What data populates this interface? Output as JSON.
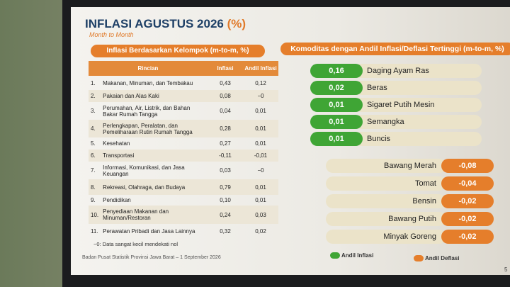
{
  "header": {
    "title": "INFLASI AGUSTUS 2026",
    "unit": "(%)",
    "subtitle": "Month to Month"
  },
  "table": {
    "title": "Inflasi Berdasarkan Kelompok (m-to-m, %)",
    "columns": [
      "Rincian",
      "Inflasi",
      "Andil Inflasi"
    ],
    "rows": [
      [
        "1.",
        "Makanan, Minuman, dan Tembakau",
        "0,43",
        "0,12"
      ],
      [
        "2.",
        "Pakaian dan Alas Kaki",
        "0,08",
        "−0"
      ],
      [
        "3.",
        "Perumahan, Air, Listrik, dan Bahan Bakar Rumah Tangga",
        "0,04",
        "0,01"
      ],
      [
        "4.",
        "Perlengkapan, Peralatan, dan Pemeliharaan Rutin Rumah Tangga",
        "0,28",
        "0,01"
      ],
      [
        "5.",
        "Kesehatan",
        "0,27",
        "0,01"
      ],
      [
        "6.",
        "Transportasi",
        "-0,11",
        "-0,01"
      ],
      [
        "7.",
        "Informasi, Komunikasi, dan Jasa Keuangan",
        "0,03",
        "−0"
      ],
      [
        "8.",
        "Rekreasi, Olahraga, dan Budaya",
        "0,79",
        "0,01"
      ],
      [
        "9.",
        "Pendidikan",
        "0,10",
        "0,01"
      ],
      [
        "10.",
        "Penyediaan Makanan dan Minuman/Restoran",
        "0,24",
        "0,03"
      ],
      [
        "11.",
        "Perawatan Pribadi dan Jasa Lainnya",
        "0,32",
        "0,02"
      ]
    ],
    "footnote": "−0: Data sangat kecil mendekati nol"
  },
  "source": "Badan Pusat Statistik Provinsi Jawa Barat – 1 September 2026",
  "commodities": {
    "title": "Komoditas dengan Andil Inflasi/Deflasi Tertinggi (m-to-m, %)",
    "inflation": [
      [
        "0,16",
        "Daging Ayam Ras"
      ],
      [
        "0,02",
        "Beras"
      ],
      [
        "0,01",
        "Sigaret Putih Mesin"
      ],
      [
        "0,01",
        "Semangka"
      ],
      [
        "0,01",
        "Buncis"
      ]
    ],
    "deflation": [
      [
        "Bawang Merah",
        "-0,08"
      ],
      [
        "Tomat",
        "-0,04"
      ],
      [
        "Bensin",
        "-0,02"
      ],
      [
        "Bawang Putih",
        "-0,02"
      ],
      [
        "Minyak Goreng",
        "-0,02"
      ]
    ],
    "legend": [
      "Andil Inflasi",
      "Andil Deflasi"
    ]
  },
  "page_number": "5"
}
